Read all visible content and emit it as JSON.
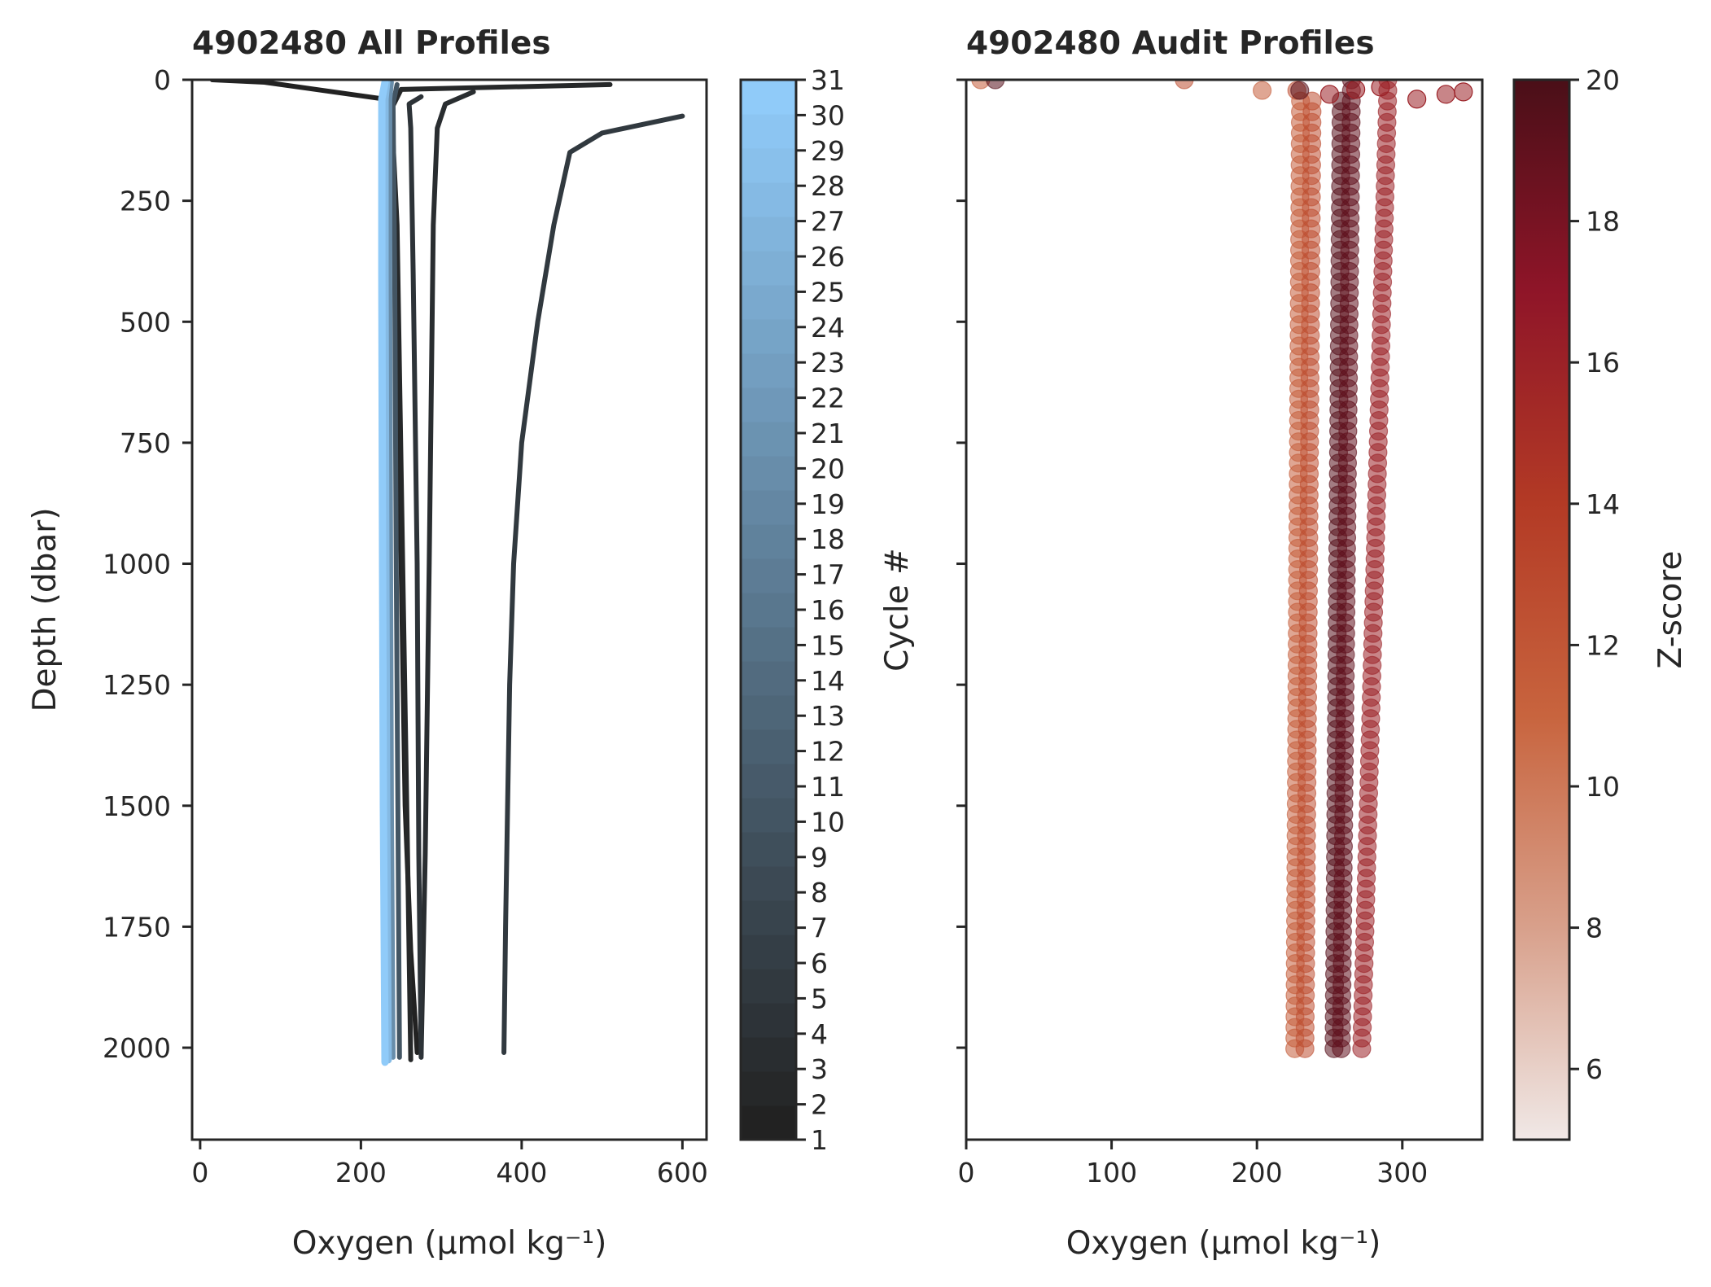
{
  "chart_data": [
    {
      "type": "line",
      "title": "4902480 All Profiles",
      "xlabel": "Oxygen (µmol kg⁻¹)",
      "ylabel": "Depth (dbar)",
      "xlim": [
        -10,
        630
      ],
      "ylim": [
        2190,
        0
      ],
      "xticks": [
        0,
        200,
        400,
        600
      ],
      "yticks": [
        0,
        250,
        500,
        750,
        1000,
        1250,
        1500,
        1750,
        2000
      ],
      "colorbar": {
        "label": "Cycle #",
        "min": 1,
        "max": 31,
        "ticks": [
          1,
          2,
          3,
          4,
          5,
          6,
          7,
          8,
          9,
          10,
          11,
          12,
          13,
          14,
          15,
          16,
          17,
          18,
          19,
          20,
          21,
          22,
          23,
          24,
          25,
          26,
          27,
          28,
          29,
          30,
          31
        ],
        "color_low": "#222222",
        "color_high": "#90cbf9"
      },
      "series": [
        {
          "cycle": 1,
          "x": [
            15,
            80,
            230,
            240,
            245,
            250,
            255,
            262,
            270
          ],
          "y": [
            0,
            5,
            40,
            150,
            500,
            1000,
            1500,
            1800,
            2010
          ]
        },
        {
          "cycle": 2,
          "x": [
            510,
            250,
            238,
            245,
            252,
            258,
            262
          ],
          "y": [
            10,
            20,
            60,
            300,
            1000,
            1600,
            2025
          ]
        },
        {
          "cycle": 3,
          "x": [
            340,
            305,
            295,
            290,
            285,
            280,
            275
          ],
          "y": [
            25,
            50,
            100,
            300,
            1000,
            1600,
            2015
          ]
        },
        {
          "cycle": 4,
          "x": [
            275,
            260,
            262,
            265,
            270,
            272,
            275
          ],
          "y": [
            35,
            50,
            100,
            400,
            1000,
            1600,
            2020
          ]
        },
        {
          "cycle": 5,
          "x": [
            600,
            500,
            460,
            440,
            420,
            400,
            390,
            385,
            380,
            378
          ],
          "y": [
            75,
            110,
            150,
            300,
            500,
            750,
            1000,
            1250,
            1750,
            2010
          ]
        },
        {
          "cycle": 10,
          "x": [
            245,
            240,
            242,
            244,
            246,
            248
          ],
          "y": [
            10,
            50,
            400,
            1000,
            1500,
            2020
          ]
        },
        {
          "cycle": 20,
          "x": [
            238,
            236,
            236,
            237,
            238,
            240
          ],
          "y": [
            5,
            40,
            400,
            1000,
            1500,
            2020
          ]
        },
        {
          "cycle": 28,
          "x": [
            232,
            230,
            230,
            231,
            232,
            234
          ],
          "y": [
            5,
            40,
            400,
            1000,
            1500,
            2025
          ]
        },
        {
          "cycle": 31,
          "x": [
            230,
            226,
            226,
            227,
            228,
            230
          ],
          "y": [
            5,
            40,
            400,
            1000,
            1500,
            2030
          ]
        }
      ]
    },
    {
      "type": "scatter",
      "title": "4902480 Audit Profiles",
      "xlabel": "Oxygen (µmol kg⁻¹)",
      "ylabel": "",
      "xlim": [
        0,
        355
      ],
      "ylim": [
        2190,
        0
      ],
      "xticks": [
        0,
        100,
        200,
        300
      ],
      "yticks": [
        0,
        250,
        500,
        750,
        1000,
        1250,
        1500,
        1750,
        2000
      ],
      "colorbar": {
        "label": "Z-score",
        "min": 5,
        "max": 20,
        "ticks": [
          6,
          8,
          10,
          12,
          14,
          16,
          18,
          20
        ],
        "color_stops": [
          "#f0e8e6",
          "#d8a08b",
          "#c8643e",
          "#b33a25",
          "#8f1528",
          "#4a0f18"
        ]
      },
      "series": [
        {
          "name": "",
          "x0": 230,
          "x_surface": 10,
          "x_deep": 226,
          "z": 11.5,
          "radius": 10
        },
        {
          "name": "",
          "x0": 238,
          "x_surface": 150,
          "x_deep": 233,
          "z": 12.5,
          "radius": 10
        },
        {
          "name": "",
          "x0": 258,
          "x_surface": 20,
          "x_deep": 253,
          "z": 19.5,
          "radius": 10
        },
        {
          "name": "",
          "x0": 265,
          "x_surface": 265,
          "x_deep": 258,
          "z": 19.0,
          "radius": 10
        },
        {
          "name": "",
          "x0": 290,
          "x_surface": 290,
          "x_deep": 272,
          "z": 16.0,
          "radius": 10
        }
      ],
      "surface_points": [
        {
          "x": 250,
          "y": 30,
          "z": 16
        },
        {
          "x": 268,
          "y": 20,
          "z": 16
        },
        {
          "x": 285,
          "y": 15,
          "z": 16
        },
        {
          "x": 310,
          "y": 40,
          "z": 16
        },
        {
          "x": 330,
          "y": 30,
          "z": 16
        },
        {
          "x": 342,
          "y": 25,
          "z": 16
        }
      ]
    }
  ]
}
